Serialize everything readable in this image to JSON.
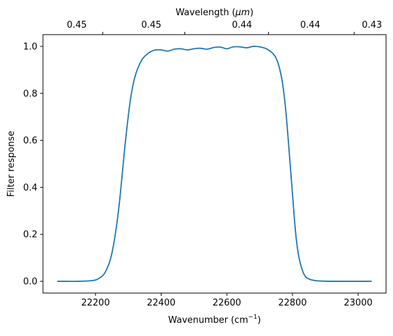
{
  "chart_data": {
    "type": "line",
    "title": "",
    "xlabel": "Wavenumber (cm",
    "xlabel_sup": "−1",
    "xlabel_close": ")",
    "ylabel": "Filter response",
    "secondary_xlabel": "Wavelength (",
    "secondary_xlabel_unit": "μm",
    "secondary_xlabel_close": ")",
    "xlim": [
      22040,
      23085
    ],
    "ylim": [
      -0.05,
      1.05
    ],
    "x_ticks": [
      22200,
      22400,
      22600,
      22800,
      23000
    ],
    "x_tick_labels": [
      "22200",
      "22400",
      "22600",
      "22800",
      "23000"
    ],
    "y_ticks": [
      0.0,
      0.2,
      0.4,
      0.6,
      0.8,
      1.0
    ],
    "y_tick_labels": [
      "0.0",
      "0.2",
      "0.4",
      "0.6",
      "0.8",
      "1.0"
    ],
    "secondary_x_ticks": [
      22222,
      22472,
      22727,
      22988
    ],
    "secondary_x_tick_labels": [
      "0.45",
      "0.45",
      "0.44",
      "0.44",
      "0.43"
    ],
    "secondary_x_tick_positions": [
      22143,
      22370,
      22646,
      22854,
      23042
    ],
    "grid": false,
    "legend": "none",
    "line_color": "#1f77b4",
    "series": [
      {
        "name": "",
        "x": [
          22085,
          22150,
          22190,
          22210,
          22230,
          22250,
          22270,
          22290,
          22305,
          22320,
          22340,
          22360,
          22380,
          22400,
          22420,
          22440,
          22460,
          22480,
          22500,
          22520,
          22540,
          22560,
          22580,
          22600,
          22620,
          22640,
          22660,
          22680,
          22700,
          22720,
          22740,
          22750,
          22760,
          22770,
          22780,
          22790,
          22800,
          22810,
          22820,
          22835,
          22850,
          22870,
          22890,
          22920,
          22960,
          23040
        ],
        "values": [
          0.0,
          0.0,
          0.003,
          0.012,
          0.04,
          0.12,
          0.3,
          0.58,
          0.76,
          0.87,
          0.94,
          0.97,
          0.984,
          0.985,
          0.98,
          0.988,
          0.99,
          0.985,
          0.99,
          0.992,
          0.988,
          0.995,
          0.997,
          0.99,
          0.998,
          0.998,
          0.994,
          1.0,
          0.998,
          0.99,
          0.97,
          0.95,
          0.91,
          0.84,
          0.72,
          0.55,
          0.37,
          0.2,
          0.1,
          0.03,
          0.01,
          0.003,
          0.001,
          0.0,
          0.0,
          0.0
        ]
      }
    ]
  }
}
